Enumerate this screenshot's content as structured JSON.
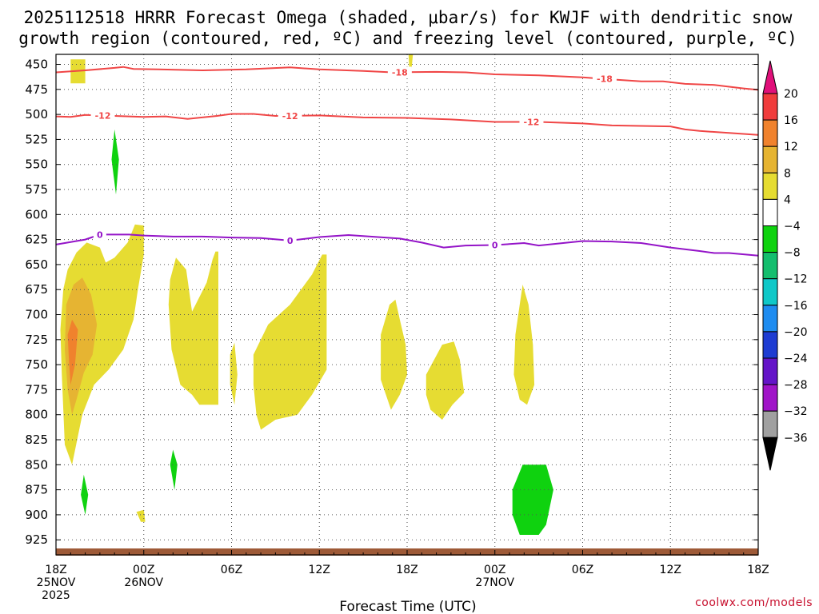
{
  "chart_data": {
    "type": "heatmap",
    "title_lines": [
      "2025112518 HRRR Forecast Omega (shaded, μbar/s) for KWJF with dendritic snow",
      "growth region (contoured, red, ºC) and freezing level (contoured, purple, ºC)"
    ],
    "xlabel": "Forecast Time (UTC)",
    "credit": "coolwx.com/models",
    "x_hours_range": [
      0,
      48
    ],
    "y_levels_range": [
      440,
      940
    ],
    "y_ticks": [
      450,
      475,
      500,
      525,
      550,
      575,
      600,
      625,
      650,
      675,
      700,
      725,
      750,
      775,
      800,
      825,
      850,
      875,
      900,
      925
    ],
    "x_ticks": [
      {
        "hour": 0,
        "lines": [
          "18Z",
          "25NOV",
          "2025"
        ]
      },
      {
        "hour": 6,
        "lines": [
          "00Z",
          "26NOV"
        ]
      },
      {
        "hour": 12,
        "lines": [
          "06Z"
        ]
      },
      {
        "hour": 18,
        "lines": [
          "12Z"
        ]
      },
      {
        "hour": 24,
        "lines": [
          "18Z"
        ]
      },
      {
        "hour": 30,
        "lines": [
          "00Z",
          "27NOV"
        ]
      },
      {
        "hour": 36,
        "lines": [
          "06Z"
        ]
      },
      {
        "hour": 42,
        "lines": [
          "12Z"
        ]
      },
      {
        "hour": 48,
        "lines": [
          "18Z"
        ]
      }
    ],
    "colorbar": {
      "labels": [
        "20",
        "16",
        "12",
        "8",
        "4",
        "−4",
        "−8",
        "−12",
        "−16",
        "−20",
        "−24",
        "−28",
        "−32",
        "−36"
      ],
      "top_cap_color": "#e0107a",
      "bottom_cap_color": "#000000",
      "bins": [
        {
          "range": [
            16,
            20
          ],
          "color": "#f03c3c"
        },
        {
          "range": [
            12,
            16
          ],
          "color": "#f0822d"
        },
        {
          "range": [
            8,
            12
          ],
          "color": "#e6b432"
        },
        {
          "range": [
            4,
            8
          ],
          "color": "#e6dc32"
        },
        {
          "range": [
            -4,
            4
          ],
          "color": "#ffffff"
        },
        {
          "range": [
            -8,
            -4
          ],
          "color": "#0fd20f"
        },
        {
          "range": [
            -12,
            -8
          ],
          "color": "#14be6e"
        },
        {
          "range": [
            -16,
            -12
          ],
          "color": "#0fc8c8"
        },
        {
          "range": [
            -20,
            -16
          ],
          "color": "#1e8cf0"
        },
        {
          "range": [
            -24,
            -20
          ],
          "color": "#1e3cd2"
        },
        {
          "range": [
            -28,
            -24
          ],
          "color": "#6414c8"
        },
        {
          "range": [
            -32,
            -28
          ],
          "color": "#a014c8"
        },
        {
          "range": [
            -36,
            -32
          ],
          "color": "#a0a0a0"
        }
      ]
    },
    "contours": [
      {
        "name": "dgz-minus-18",
        "kind": "dgz",
        "color": "#f04646",
        "label": "-18",
        "label_hours": [
          23.5,
          37.5
        ],
        "points": [
          [
            0,
            458
          ],
          [
            2,
            456
          ],
          [
            4,
            453.5
          ],
          [
            4.6,
            452.5
          ],
          [
            5.3,
            454.5
          ],
          [
            7,
            455
          ],
          [
            10,
            456
          ],
          [
            13,
            455
          ],
          [
            16,
            453
          ],
          [
            18,
            455
          ],
          [
            21,
            456.5
          ],
          [
            23,
            458
          ],
          [
            26,
            457.5
          ],
          [
            28,
            458
          ],
          [
            30,
            460
          ],
          [
            33,
            461
          ],
          [
            36,
            463
          ],
          [
            37.5,
            464.5
          ],
          [
            40,
            467
          ],
          [
            41.5,
            467
          ],
          [
            43,
            469.5
          ],
          [
            45,
            470.5
          ],
          [
            47,
            474
          ],
          [
            48,
            475.5
          ]
        ]
      },
      {
        "name": "dgz-minus-12",
        "kind": "dgz",
        "color": "#f04646",
        "label": "-12",
        "label_hours": [
          3.2,
          16,
          32.5
        ],
        "points": [
          [
            0,
            502
          ],
          [
            1,
            502.5
          ],
          [
            2,
            500.5
          ],
          [
            4,
            501.5
          ],
          [
            6,
            502.5
          ],
          [
            7.5,
            502
          ],
          [
            9,
            504.5
          ],
          [
            11,
            501.5
          ],
          [
            12,
            499.5
          ],
          [
            13.5,
            499.5
          ],
          [
            15,
            501.5
          ],
          [
            18,
            501
          ],
          [
            21,
            503
          ],
          [
            24,
            503.5
          ],
          [
            27,
            505
          ],
          [
            30,
            507.5
          ],
          [
            33,
            507.5
          ],
          [
            36,
            509
          ],
          [
            38,
            511
          ],
          [
            40,
            511.5
          ],
          [
            42,
            512
          ],
          [
            43,
            515
          ],
          [
            44,
            516.5
          ],
          [
            46,
            518.5
          ],
          [
            48,
            520.5
          ]
        ]
      },
      {
        "name": "freezing-level",
        "kind": "fzl",
        "color": "#9414c8",
        "label": "0",
        "label_hours": [
          3,
          16,
          30
        ],
        "points": [
          [
            0,
            630
          ],
          [
            2,
            625
          ],
          [
            3,
            620
          ],
          [
            5,
            620
          ],
          [
            6,
            621
          ],
          [
            8,
            622
          ],
          [
            10,
            622
          ],
          [
            12,
            623
          ],
          [
            14,
            623.5
          ],
          [
            16,
            626
          ],
          [
            18,
            622.5
          ],
          [
            20,
            620.5
          ],
          [
            22,
            622.5
          ],
          [
            23.5,
            624
          ],
          [
            25,
            628
          ],
          [
            26.5,
            633
          ],
          [
            28,
            631
          ],
          [
            30,
            630.5
          ],
          [
            32,
            628.5
          ],
          [
            33,
            631
          ],
          [
            35,
            628
          ],
          [
            36,
            626.5
          ],
          [
            38,
            627
          ],
          [
            40,
            628.5
          ],
          [
            42,
            633
          ],
          [
            44,
            636.5
          ],
          [
            45,
            638.5
          ],
          [
            46,
            638.5
          ],
          [
            48,
            641
          ]
        ]
      }
    ],
    "shaded_regions": [
      {
        "name": "omega-yellow-a",
        "color": "#e6dc32",
        "points": [
          [
            1,
            445
          ],
          [
            2,
            445
          ],
          [
            2,
            469
          ],
          [
            1,
            469
          ]
        ]
      },
      {
        "name": "omega-yellow-b",
        "color": "#e6dc32",
        "points": [
          [
            24.1,
            440
          ],
          [
            24.4,
            440
          ],
          [
            24.3,
            455
          ],
          [
            24.15,
            455
          ]
        ]
      },
      {
        "name": "omega-yellow-c",
        "color": "#e6dc32",
        "points": [
          [
            0.5,
            675
          ],
          [
            0.8,
            655
          ],
          [
            1.4,
            638
          ],
          [
            2.1,
            628
          ],
          [
            3,
            633
          ],
          [
            3.4,
            648
          ],
          [
            4,
            643
          ],
          [
            4.9,
            628
          ],
          [
            5.4,
            610
          ],
          [
            6,
            611
          ],
          [
            6,
            640
          ],
          [
            5.6,
            675
          ],
          [
            5.3,
            705
          ],
          [
            4.6,
            735
          ],
          [
            3.6,
            755
          ],
          [
            2.6,
            770
          ],
          [
            1.8,
            800
          ],
          [
            1.1,
            850
          ],
          [
            0.6,
            830
          ],
          [
            0.4,
            760
          ],
          [
            0.3,
            715
          ]
        ]
      },
      {
        "name": "omega-yellow-d",
        "color": "#e6dc32",
        "points": [
          [
            7.8,
            665
          ],
          [
            8.2,
            643
          ],
          [
            8.9,
            655
          ],
          [
            9.3,
            697
          ],
          [
            10.3,
            668
          ],
          [
            10.7,
            645
          ],
          [
            10.9,
            637
          ],
          [
            11.1,
            637
          ],
          [
            11.1,
            790
          ],
          [
            9.8,
            790
          ],
          [
            9.3,
            780
          ],
          [
            8.5,
            770
          ],
          [
            7.9,
            735
          ],
          [
            7.7,
            690
          ]
        ]
      },
      {
        "name": "omega-yellow-e",
        "color": "#e6dc32",
        "points": [
          [
            11.9,
            740
          ],
          [
            12.2,
            728
          ],
          [
            12.4,
            760
          ],
          [
            12.2,
            790
          ],
          [
            11.9,
            770
          ]
        ]
      },
      {
        "name": "omega-yellow-f",
        "color": "#e6dc32",
        "points": [
          [
            13.5,
            740
          ],
          [
            14.5,
            710
          ],
          [
            16,
            690
          ],
          [
            17.5,
            660
          ],
          [
            18.2,
            640
          ],
          [
            18.5,
            640
          ],
          [
            18.5,
            755
          ],
          [
            17.5,
            780
          ],
          [
            16.5,
            800
          ],
          [
            15,
            805
          ],
          [
            14,
            815
          ],
          [
            13.7,
            800
          ],
          [
            13.5,
            770
          ]
        ]
      },
      {
        "name": "omega-yellow-g",
        "color": "#e6dc32",
        "points": [
          [
            22.2,
            720
          ],
          [
            22.8,
            690
          ],
          [
            23.2,
            685
          ],
          [
            23.5,
            705
          ],
          [
            23.9,
            730
          ],
          [
            24,
            760
          ],
          [
            23.5,
            780
          ],
          [
            22.9,
            795
          ],
          [
            22.2,
            765
          ]
        ]
      },
      {
        "name": "omega-yellow-h",
        "color": "#e6dc32",
        "points": [
          [
            25.3,
            760
          ],
          [
            26.4,
            730
          ],
          [
            27.2,
            727
          ],
          [
            27.6,
            745
          ],
          [
            27.9,
            778
          ],
          [
            27.1,
            790
          ],
          [
            26.4,
            805
          ],
          [
            25.6,
            795
          ],
          [
            25.3,
            780
          ]
        ]
      },
      {
        "name": "omega-yellow-i",
        "color": "#e6dc32",
        "points": [
          [
            31.4,
            720
          ],
          [
            31.7,
            690
          ],
          [
            31.9,
            670
          ],
          [
            32.3,
            690
          ],
          [
            32.6,
            730
          ],
          [
            32.7,
            770
          ],
          [
            32.2,
            790
          ],
          [
            31.7,
            785
          ],
          [
            31.3,
            760
          ]
        ]
      },
      {
        "name": "omega-yellow-j",
        "color": "#e6dc32",
        "points": [
          [
            5.5,
            897
          ],
          [
            6,
            895
          ],
          [
            6.1,
            907
          ],
          [
            5.8,
            907
          ]
        ]
      },
      {
        "name": "omega-orange-a",
        "color": "#e6b432",
        "points": [
          [
            0.7,
            690
          ],
          [
            1.2,
            670
          ],
          [
            1.8,
            663
          ],
          [
            2.4,
            680
          ],
          [
            2.8,
            710
          ],
          [
            2.5,
            740
          ],
          [
            1.9,
            758
          ],
          [
            1.4,
            785
          ],
          [
            1.1,
            800
          ],
          [
            0.8,
            775
          ],
          [
            0.6,
            735
          ]
        ]
      },
      {
        "name": "omega-darkorange-a",
        "color": "#f0822d",
        "points": [
          [
            0.8,
            720
          ],
          [
            1.1,
            705
          ],
          [
            1.5,
            715
          ],
          [
            1.3,
            750
          ],
          [
            1.0,
            770
          ],
          [
            0.9,
            750
          ]
        ]
      },
      {
        "name": "omega-green-a",
        "color": "#0fd20f",
        "points": [
          [
            3.8,
            545
          ],
          [
            4.0,
            515
          ],
          [
            4.3,
            545
          ],
          [
            4.1,
            580
          ]
        ]
      },
      {
        "name": "omega-green-b",
        "color": "#0fd20f",
        "points": [
          [
            1.7,
            880
          ],
          [
            1.9,
            860
          ],
          [
            2.2,
            880
          ],
          [
            2.0,
            900
          ]
        ]
      },
      {
        "name": "omega-green-c",
        "color": "#0fd20f",
        "points": [
          [
            7.8,
            850
          ],
          [
            8,
            835
          ],
          [
            8.3,
            850
          ],
          [
            8.1,
            875
          ]
        ]
      },
      {
        "name": "omega-green-d",
        "color": "#0fd20f",
        "points": [
          [
            31.2,
            875
          ],
          [
            31.9,
            850
          ],
          [
            33.5,
            850
          ],
          [
            34,
            875
          ],
          [
            33.5,
            910
          ],
          [
            33,
            920
          ],
          [
            31.7,
            920
          ],
          [
            31.2,
            900
          ]
        ]
      }
    ]
  }
}
